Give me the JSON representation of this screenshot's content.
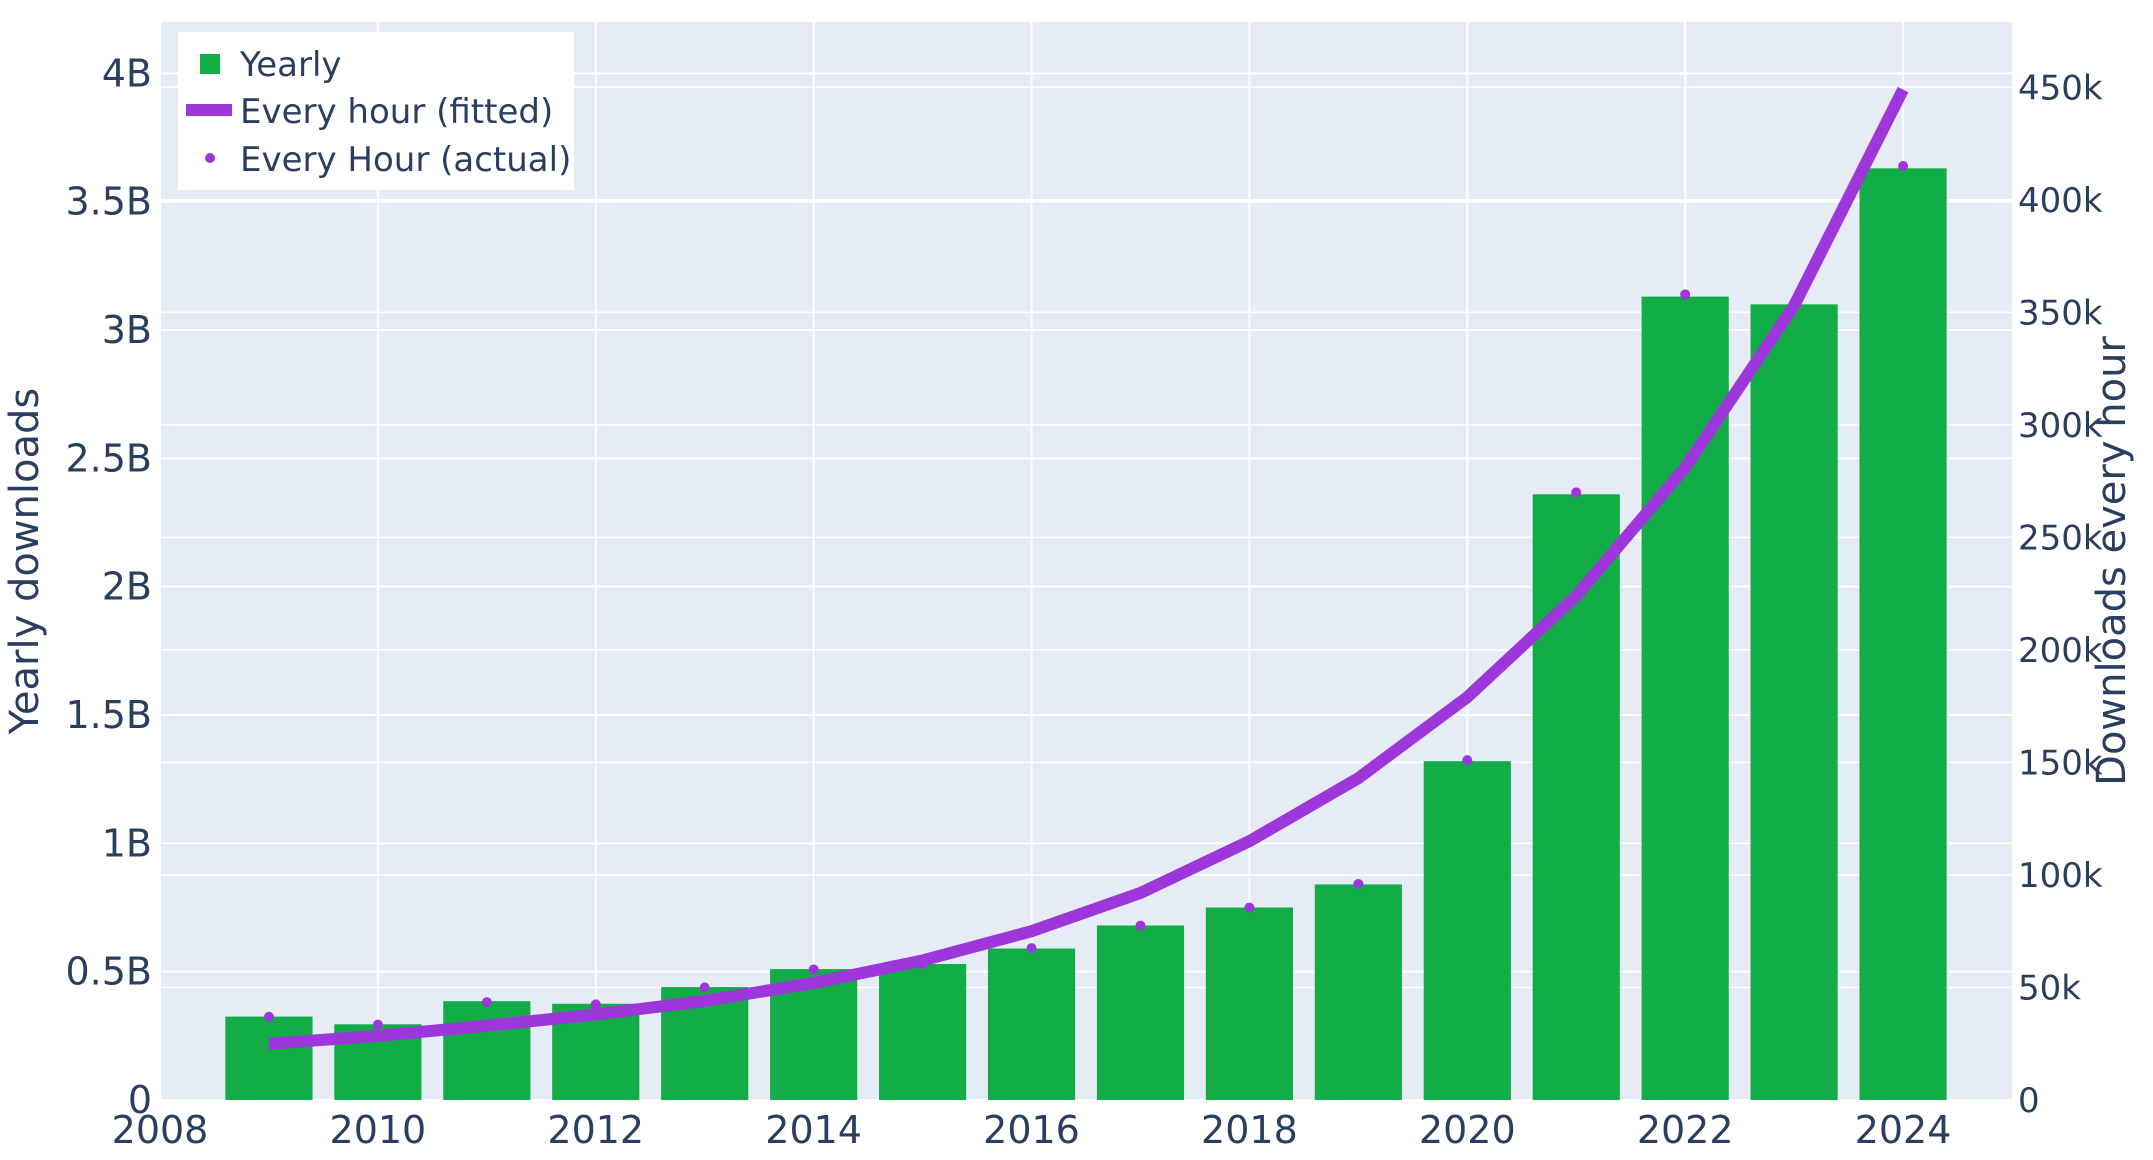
{
  "chart_data": {
    "type": "bar",
    "x": [
      2009,
      2010,
      2011,
      2012,
      2013,
      2014,
      2015,
      2016,
      2017,
      2018,
      2019,
      2020,
      2021,
      2022,
      2023,
      2024
    ],
    "series": [
      {
        "name": "Yearly",
        "kind": "bar",
        "axis": "left",
        "color": "#12ad46",
        "values": [
          0.325,
          0.295,
          0.385,
          0.375,
          0.44,
          0.51,
          0.53,
          0.59,
          0.68,
          0.75,
          0.84,
          1.32,
          2.36,
          3.13,
          3.1,
          3.63
        ]
      },
      {
        "name": "Every hour (fitted)",
        "kind": "line",
        "axis": "right",
        "color": "#9d37dc",
        "values": [
          25000,
          28500,
          33000,
          38000,
          44000,
          52000,
          62000,
          75000,
          92000,
          115000,
          143000,
          179000,
          224000,
          281000,
          353000,
          449000
        ]
      },
      {
        "name": "Every Hour (actual)",
        "kind": "markers",
        "axis": "right",
        "color": "#9d37dc",
        "values": [
          37000,
          33500,
          43500,
          42500,
          50000,
          58000,
          60500,
          67500,
          77500,
          85500,
          96000,
          151000,
          270000,
          358000,
          354000,
          415000
        ]
      }
    ],
    "xlim": [
      2008,
      2025
    ],
    "ylim": [
      0,
      4.2
    ],
    "y2lim": [
      0,
      479000
    ],
    "xticks": [
      "2008",
      "2010",
      "2012",
      "2014",
      "2016",
      "2018",
      "2020",
      "2022",
      "2024"
    ],
    "yticks": [
      "0",
      "0.5B",
      "1B",
      "1.5B",
      "2B",
      "2.5B",
      "3B",
      "3.5B",
      "4B"
    ],
    "y2ticks": [
      "0",
      "50k",
      "100k",
      "150k",
      "200k",
      "250k",
      "300k",
      "350k",
      "400k",
      "450k"
    ],
    "ylabel": "Yearly downloads",
    "y2label": "Downloads every hour",
    "xlabel": "",
    "title": "",
    "legend_position": "top-left",
    "grid": true,
    "plot_background": "#e5ecf6",
    "grid_color": "#ffffff",
    "text_color": "#2a3f5f"
  }
}
